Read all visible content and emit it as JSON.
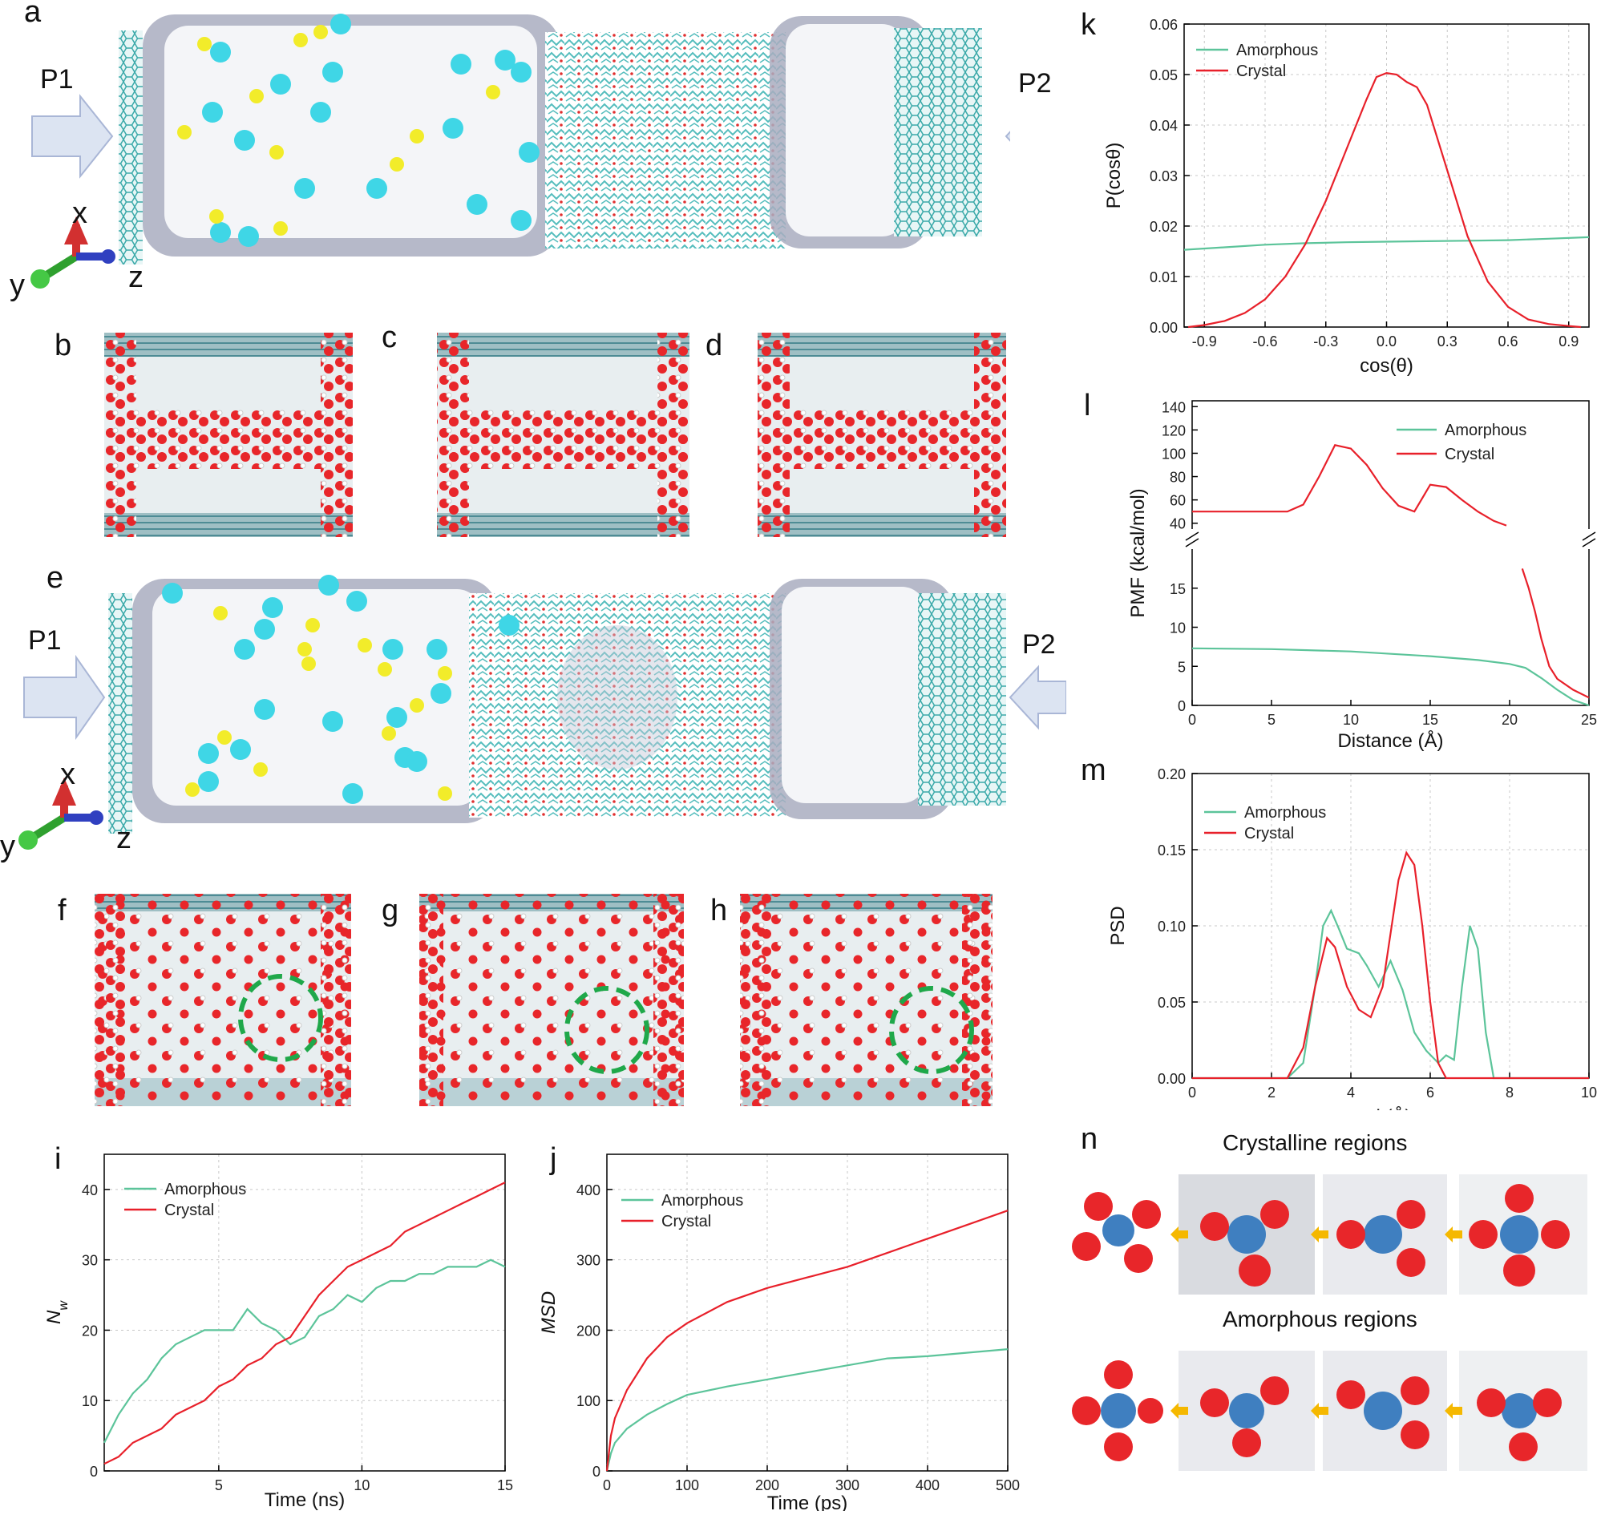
{
  "panels": {
    "a": "a",
    "b": "b",
    "c": "c",
    "d": "d",
    "e": "e",
    "f": "f",
    "g": "g",
    "h": "h",
    "i": "i",
    "j": "j",
    "k": "k",
    "l": "l",
    "m": "m",
    "n": "n"
  },
  "sim_labels": {
    "p1": "P1",
    "p2": "P2",
    "x": "x",
    "y": "y",
    "z": "z"
  },
  "panel_n": {
    "top_title": "Crystalline regions",
    "bottom_title": "Amorphous regions"
  },
  "colors": {
    "amorphous": "#5cc49a",
    "crystal": "#e8202a",
    "water_o": "#e8262a",
    "ion_na": "#3fd6e6",
    "ion_cl": "#f2ec2a",
    "membrane": "#8f96b0",
    "ion_n": "#3f7fc0",
    "arrow": "#f5b800"
  },
  "chart_data": [
    {
      "id": "k",
      "type": "line",
      "xlabel": "cos(θ)",
      "ylabel": "P(cosθ)",
      "xlim": [
        -1,
        1
      ],
      "ylim": [
        0,
        0.06
      ],
      "xticks": [
        -0.9,
        -0.6,
        -0.3,
        0.0,
        0.3,
        0.6,
        0.9
      ],
      "yticks": [
        0.0,
        0.01,
        0.02,
        0.03,
        0.04,
        0.05,
        0.06
      ],
      "legend": "top-left",
      "grid": true,
      "series": [
        {
          "name": "Amorphous",
          "color": "#5cc49a",
          "x": [
            -1.0,
            -0.8,
            -0.6,
            -0.4,
            -0.2,
            0.0,
            0.2,
            0.4,
            0.6,
            0.8,
            1.0
          ],
          "y": [
            0.0153,
            0.0158,
            0.0163,
            0.0166,
            0.0168,
            0.0169,
            0.017,
            0.0171,
            0.0172,
            0.0175,
            0.0178
          ]
        },
        {
          "name": "Crystal",
          "color": "#e8202a",
          "x": [
            -0.98,
            -0.9,
            -0.8,
            -0.7,
            -0.6,
            -0.5,
            -0.4,
            -0.3,
            -0.2,
            -0.1,
            -0.05,
            0.0,
            0.05,
            0.1,
            0.15,
            0.2,
            0.3,
            0.4,
            0.5,
            0.6,
            0.7,
            0.8,
            0.9,
            0.96
          ],
          "y": [
            0.0,
            0.0004,
            0.0012,
            0.0028,
            0.0055,
            0.01,
            0.0165,
            0.025,
            0.035,
            0.045,
            0.0495,
            0.0503,
            0.05,
            0.0485,
            0.0475,
            0.044,
            0.031,
            0.018,
            0.009,
            0.004,
            0.0015,
            0.0006,
            0.0002,
            0.0
          ]
        }
      ]
    },
    {
      "id": "l",
      "type": "line",
      "xlabel": "Distance (Å)",
      "ylabel": "PMF (kcal/mol)",
      "xlim": [
        0,
        25
      ],
      "ylim_lower": [
        0,
        20
      ],
      "ylim_upper": [
        35,
        145
      ],
      "xticks": [
        0,
        5,
        10,
        15,
        20,
        25
      ],
      "yticks_lower": [
        0,
        5,
        10,
        15
      ],
      "yticks_upper": [
        40,
        60,
        80,
        100,
        120,
        140
      ],
      "legend": "top-right",
      "grid": false,
      "axis_break": true,
      "series": [
        {
          "name": "Amorphous",
          "color": "#5cc49a",
          "x": [
            0,
            5,
            10,
            15,
            18,
            20,
            21,
            22,
            23,
            24,
            25
          ],
          "y": [
            7.3,
            7.2,
            6.9,
            6.3,
            5.8,
            5.3,
            4.8,
            3.5,
            2.0,
            0.7,
            0.0
          ]
        },
        {
          "name": "Crystal",
          "color": "#e8202a",
          "x": [
            0,
            4,
            6,
            7,
            8,
            9,
            10,
            11,
            12,
            13,
            14,
            15,
            16,
            17,
            18,
            19,
            19.8
          ],
          "y": [
            50,
            50,
            50,
            56,
            80,
            107,
            104,
            90,
            70,
            55,
            50,
            73,
            71,
            60,
            50,
            42,
            38
          ]
        },
        {
          "name": "Crystal (lower)",
          "color": "#e8202a",
          "x": [
            20.8,
            21.2,
            21.6,
            22,
            22.5,
            23,
            24,
            25
          ],
          "y": [
            17.5,
            15.0,
            12.0,
            8.5,
            5.0,
            3.4,
            2.0,
            1.0
          ]
        }
      ]
    },
    {
      "id": "m",
      "type": "line",
      "xlabel": "d (Å)",
      "ylabel": "PSD",
      "xlim": [
        0,
        10
      ],
      "ylim": [
        0,
        0.2
      ],
      "xticks": [
        0,
        2,
        4,
        6,
        8,
        10
      ],
      "yticks": [
        0.0,
        0.05,
        0.1,
        0.15,
        0.2
      ],
      "legend": "top-left",
      "grid": true,
      "series": [
        {
          "name": "Amorphous",
          "color": "#5cc49a",
          "x": [
            0,
            2.4,
            2.8,
            3.1,
            3.3,
            3.5,
            3.7,
            3.9,
            4.2,
            4.4,
            4.7,
            5.0,
            5.3,
            5.6,
            5.9,
            6.2,
            6.4,
            6.6,
            6.8,
            7.0,
            7.2,
            7.4,
            7.6,
            10
          ],
          "y": [
            0,
            0,
            0.01,
            0.06,
            0.1,
            0.11,
            0.098,
            0.085,
            0.082,
            0.074,
            0.06,
            0.077,
            0.058,
            0.03,
            0.018,
            0.01,
            0.015,
            0.012,
            0.06,
            0.1,
            0.085,
            0.03,
            0,
            0
          ]
        },
        {
          "name": "Crystal",
          "color": "#e8202a",
          "x": [
            0,
            2.4,
            2.8,
            3.1,
            3.4,
            3.6,
            3.9,
            4.2,
            4.5,
            4.8,
            5.0,
            5.2,
            5.4,
            5.6,
            5.8,
            6.0,
            6.2,
            6.4,
            10
          ],
          "y": [
            0,
            0,
            0.02,
            0.06,
            0.092,
            0.086,
            0.06,
            0.045,
            0.04,
            0.06,
            0.095,
            0.13,
            0.148,
            0.14,
            0.1,
            0.05,
            0.01,
            0,
            0
          ]
        }
      ]
    },
    {
      "id": "i",
      "type": "line",
      "xlabel": "Time (ns)",
      "ylabel": "N_w",
      "xlim": [
        1,
        15
      ],
      "ylim": [
        0,
        45
      ],
      "xticks": [
        5,
        10,
        15
      ],
      "yticks": [
        0,
        10,
        20,
        30,
        40
      ],
      "legend": "top-left",
      "grid": true,
      "series": [
        {
          "name": "Amorphous",
          "color": "#5cc49a",
          "x": [
            1,
            1.5,
            2,
            2.5,
            3,
            3.5,
            4,
            4.5,
            5,
            5.5,
            6,
            6.5,
            7,
            7.5,
            8,
            8.5,
            9,
            9.5,
            10,
            10.5,
            11,
            11.5,
            12,
            12.5,
            13,
            13.5,
            14,
            14.5,
            15
          ],
          "y": [
            4,
            8,
            11,
            13,
            16,
            18,
            19,
            20,
            20,
            20,
            23,
            21,
            20,
            18,
            19,
            22,
            23,
            25,
            24,
            26,
            27,
            27,
            28,
            28,
            29,
            29,
            29,
            30,
            29
          ]
        },
        {
          "name": "Crystal",
          "color": "#e8202a",
          "x": [
            1,
            1.5,
            2,
            2.5,
            3,
            3.5,
            4,
            4.5,
            5,
            5.5,
            6,
            6.5,
            7,
            7.5,
            8,
            8.5,
            9,
            9.5,
            10,
            10.5,
            11,
            11.5,
            12,
            12.5,
            13,
            13.5,
            14,
            14.5,
            15
          ],
          "y": [
            1,
            2,
            4,
            5,
            6,
            8,
            9,
            10,
            12,
            13,
            15,
            16,
            18,
            19,
            22,
            25,
            27,
            29,
            30,
            31,
            32,
            34,
            35,
            36,
            37,
            38,
            39,
            40,
            41
          ]
        }
      ]
    },
    {
      "id": "j",
      "type": "line",
      "xlabel": "Time (ps)",
      "ylabel": "MSD",
      "xlim": [
        0,
        500
      ],
      "ylim": [
        0,
        450
      ],
      "xticks": [
        0,
        100,
        200,
        300,
        400,
        500
      ],
      "yticks": [
        0,
        100,
        200,
        300,
        400
      ],
      "legend": "top-left",
      "grid": true,
      "series": [
        {
          "name": "Amorphous",
          "color": "#5cc49a",
          "x": [
            0,
            5,
            10,
            25,
            50,
            75,
            100,
            150,
            200,
            250,
            300,
            350,
            400,
            450,
            500
          ],
          "y": [
            0,
            25,
            40,
            60,
            80,
            95,
            108,
            120,
            130,
            140,
            150,
            160,
            163,
            168,
            173
          ]
        },
        {
          "name": "Crystal",
          "color": "#e8202a",
          "x": [
            0,
            5,
            10,
            25,
            50,
            75,
            100,
            150,
            200,
            250,
            300,
            350,
            400,
            450,
            500
          ],
          "y": [
            0,
            50,
            75,
            115,
            160,
            190,
            210,
            240,
            260,
            275,
            290,
            310,
            330,
            350,
            370
          ]
        }
      ]
    }
  ]
}
